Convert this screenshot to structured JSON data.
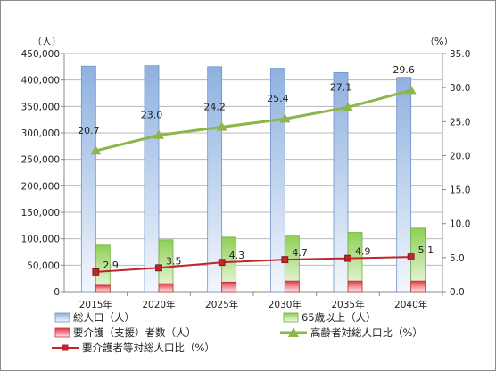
{
  "chart_data": {
    "type": "bar",
    "categories": [
      "2015年",
      "2020年",
      "2025年",
      "2030年",
      "2035年",
      "2040年"
    ],
    "left_axis": {
      "unit": "（人）",
      "ylim": [
        0,
        450000
      ],
      "ticks": [
        0,
        50000,
        100000,
        150000,
        200000,
        250000,
        300000,
        350000,
        400000,
        450000
      ],
      "tick_labels": [
        "0",
        "50,000",
        "100,000",
        "150,000",
        "200,000",
        "250,000",
        "300,000",
        "350,000",
        "400,000",
        "450,000"
      ]
    },
    "right_axis": {
      "unit": "（%）",
      "ylim": [
        0,
        35
      ],
      "ticks": [
        0,
        5,
        10,
        15,
        20,
        25,
        30,
        35
      ],
      "tick_labels": [
        "0.0",
        "5.0",
        "10.0",
        "15.0",
        "20.0",
        "25.0",
        "30.0",
        "35.0"
      ]
    },
    "series": [
      {
        "name": "総人口（人）",
        "kind": "bar",
        "axis": "left",
        "color": "#8fb1e0",
        "values": [
          426000,
          427000,
          425000,
          422000,
          414000,
          405000
        ]
      },
      {
        "name": "65歳以上（人）",
        "kind": "bar",
        "axis": "left",
        "color": "#9bd36a",
        "values": [
          88000,
          98000,
          103000,
          107000,
          112000,
          120000
        ]
      },
      {
        "name": "要介護（支援）者数（人）",
        "kind": "bar",
        "axis": "left",
        "color": "#e8424a",
        "values": [
          12000,
          15000,
          18000,
          20000,
          20000,
          20000
        ]
      },
      {
        "name": "高齢者対総人口比（%）",
        "kind": "line",
        "axis": "right",
        "color": "#8cb54a",
        "marker": "triangle",
        "values": [
          20.7,
          23.0,
          24.2,
          25.4,
          27.1,
          29.6
        ],
        "labels": [
          "20.7",
          "23.0",
          "24.2",
          "25.4",
          "27.1",
          "29.6"
        ]
      },
      {
        "name": "要介護者等対総人口比（%）",
        "kind": "line",
        "axis": "right",
        "color": "#c0242c",
        "marker": "square",
        "values": [
          2.9,
          3.5,
          4.3,
          4.7,
          4.9,
          5.1
        ],
        "labels": [
          "2.9",
          "3.5",
          "4.3",
          "4.7",
          "4.9",
          "5.1"
        ]
      }
    ],
    "grid": true,
    "legend": "bottom"
  }
}
